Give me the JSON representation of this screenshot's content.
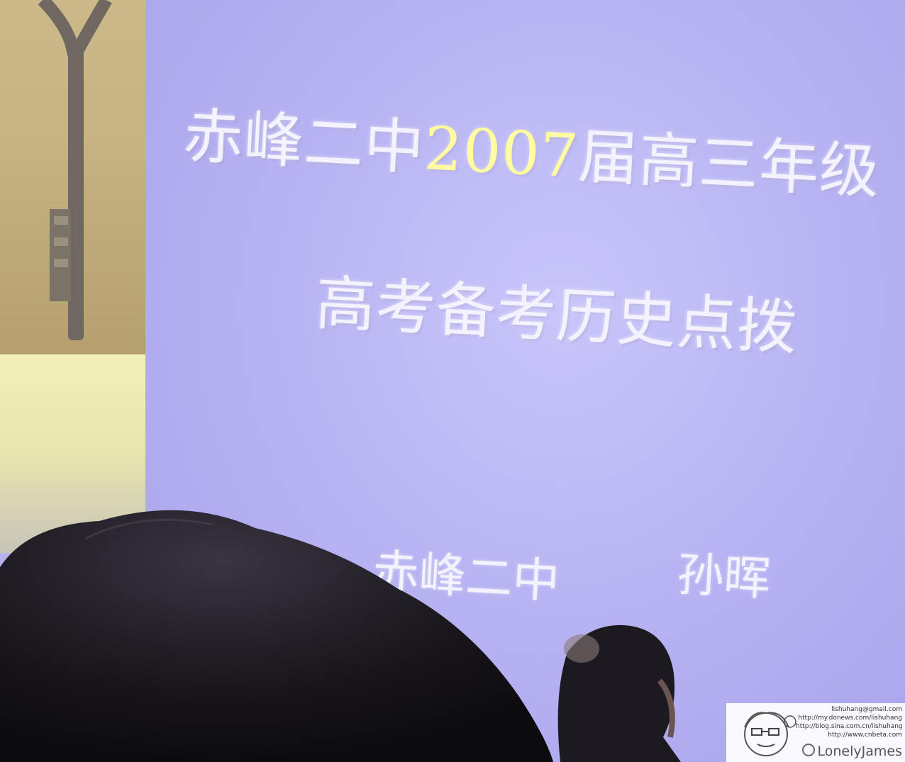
{
  "slide": {
    "title_line1_part1": "赤峰二中",
    "title_line1_year": "2007",
    "title_line1_part2": "届高三年级",
    "title_line2": "高考备考历史点拨",
    "school": "赤峰二中",
    "presenter": "孙晖"
  },
  "watermark": {
    "email": "lishuhang@gmail.com",
    "links": [
      "http://my.donews.com/lishuhang",
      "http://blog.sina.com.cn/lishuhang",
      "http://www.cnbeta.com"
    ],
    "brand": "LonelyJames"
  },
  "colors": {
    "screen": "#b8b4f3",
    "title_text": "#f4f2ff",
    "title_highlight": "#fffda0",
    "left_panel": "#c6b381"
  }
}
